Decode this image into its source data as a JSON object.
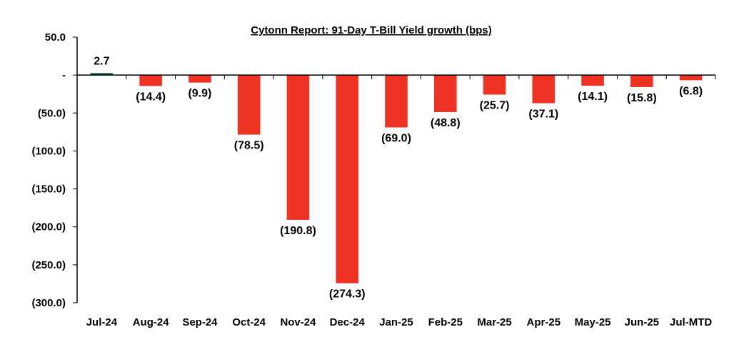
{
  "chart_data": {
    "type": "bar",
    "title": "Cytonn Report:  91-Day T-Bill Yield growth (bps)",
    "xlabel": "",
    "ylabel": "",
    "categories": [
      "Jul-24",
      "Aug-24",
      "Sep-24",
      "Oct-24",
      "Nov-24",
      "Dec-24",
      "Jan-25",
      "Feb-25",
      "Mar-25",
      "Apr-25",
      "May-25",
      "Jun-25",
      "Jul-MTD"
    ],
    "values": [
      2.7,
      -14.4,
      -9.9,
      -78.5,
      -190.8,
      -274.3,
      -69.0,
      -48.8,
      -25.7,
      -37.1,
      -14.1,
      -15.8,
      -6.8
    ],
    "data_labels": [
      "2.7",
      "(14.4)",
      "(9.9)",
      "(78.5)",
      "(190.8)",
      "(274.3)",
      "(69.0)",
      "(48.8)",
      "(25.7)",
      "(37.1)",
      "(14.1)",
      "(15.8)",
      "(6.8)"
    ],
    "ylim": [
      -300,
      50
    ],
    "y_ticks": [
      {
        "value": 50,
        "label": "50.0"
      },
      {
        "value": 0,
        "label": "-"
      },
      {
        "value": -50,
        "label": "(50.0)"
      },
      {
        "value": -100,
        "label": "(100.0)"
      },
      {
        "value": -150,
        "label": "(150.0)"
      },
      {
        "value": -200,
        "label": "(200.0)"
      },
      {
        "value": -250,
        "label": "(250.0)"
      },
      {
        "value": -300,
        "label": "(300.0)"
      }
    ],
    "grid": false,
    "legend": "none",
    "colors": {
      "positive": "#1e5f3b",
      "negative": "#ee3224",
      "axis": "#000000"
    }
  }
}
